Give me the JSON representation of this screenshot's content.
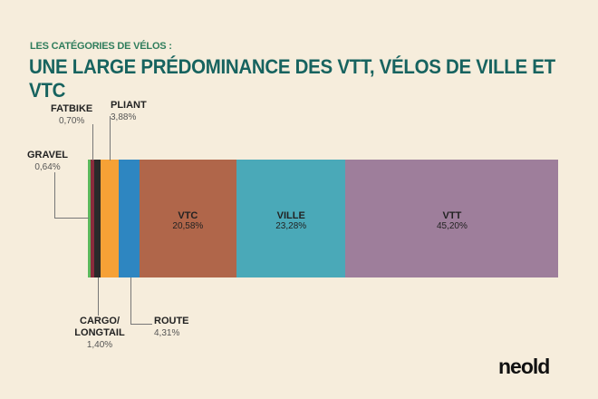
{
  "subtitle": "LES CATÉGORIES DE VÉLOS :",
  "title": "UNE LARGE PRÉDOMINANCE DES VTT, VÉLOS DE VILLE ET VTC",
  "logo": "neold",
  "chart_data": {
    "type": "bar",
    "orientation": "stacked-horizontal",
    "title": "UNE LARGE PRÉDOMINANCE DES VTT, VÉLOS DE VILLE ET VTC",
    "categories": [
      "GRAVEL",
      "FATBIKE",
      "CARGO/ LONGTAIL",
      "PLIANT",
      "ROUTE",
      "VTC",
      "VILLE",
      "VTT"
    ],
    "values": [
      0.64,
      0.7,
      1.4,
      3.88,
      4.31,
      20.58,
      23.28,
      45.2
    ],
    "labels": [
      "0,64%",
      "0,70%",
      "1,40%",
      "3,88%",
      "4,31%",
      "20,58%",
      "23,28%",
      "45,20%"
    ],
    "colors": [
      "#5cb85c",
      "#8a2b3c",
      "#2a2a2a",
      "#f6a136",
      "#2e86c1",
      "#b0664a",
      "#4aa9b8",
      "#9e7e9b"
    ],
    "unit": "%"
  }
}
